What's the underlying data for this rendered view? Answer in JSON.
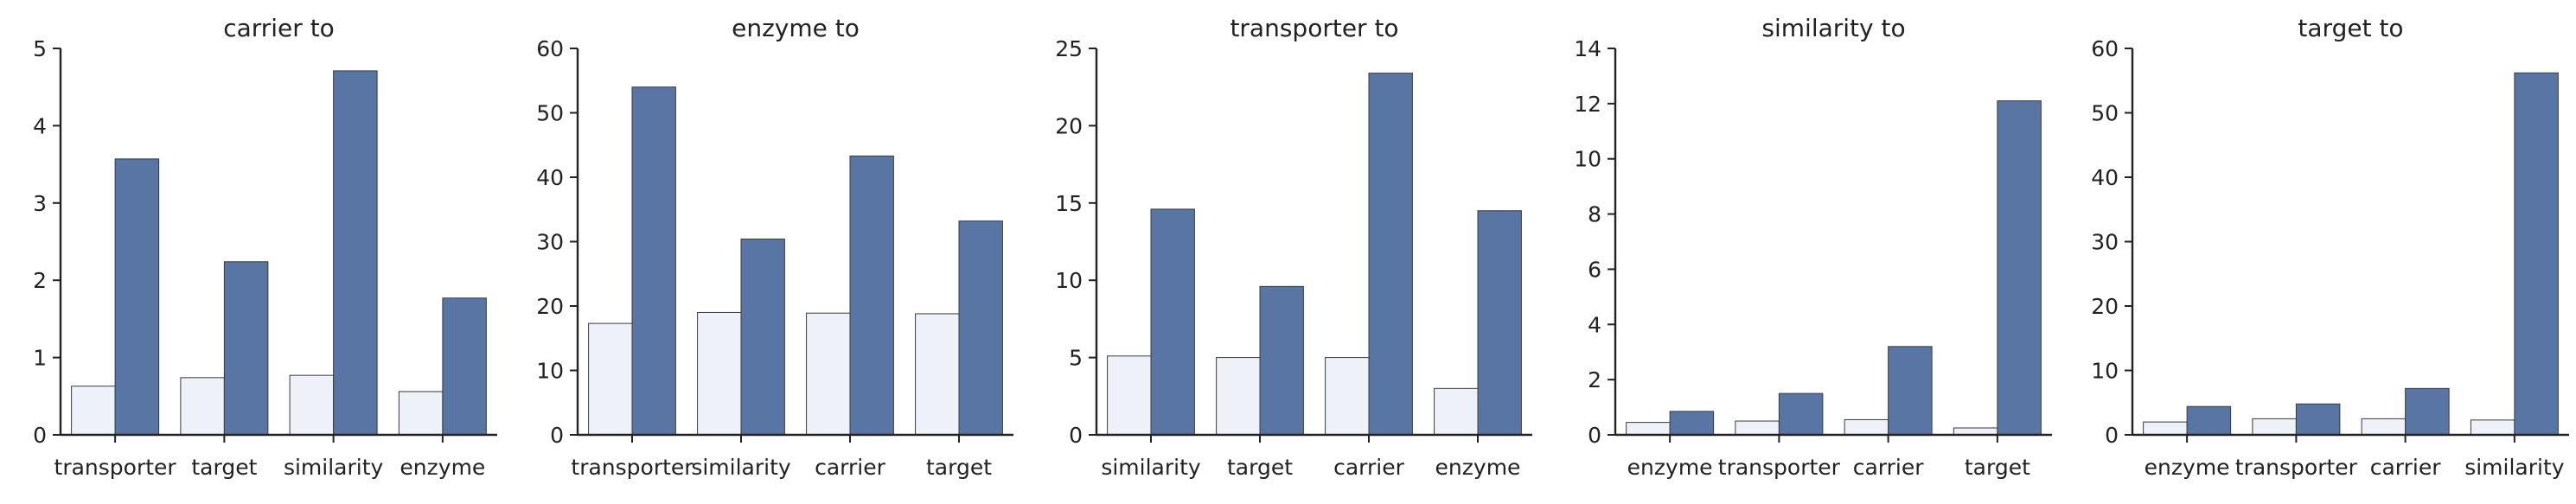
{
  "colors": {
    "light_bar": "#eef2f8",
    "dark_bar": "#5975a4"
  },
  "chart_data": [
    {
      "type": "bar",
      "title": "carrier to",
      "categories": [
        "transporter",
        "target",
        "similarity",
        "enzyme"
      ],
      "series": [
        {
          "values": [
            0.63,
            0.74,
            0.77,
            0.56
          ]
        },
        {
          "values": [
            3.57,
            2.24,
            4.71,
            1.77
          ]
        }
      ],
      "ylim": [
        0,
        5
      ],
      "yticks": [
        0,
        1,
        2,
        3,
        4,
        5
      ],
      "grid": false
    },
    {
      "type": "bar",
      "title": "enzyme to",
      "categories": [
        "transporter",
        "similarity",
        "carrier",
        "target"
      ],
      "series": [
        {
          "values": [
            17.3,
            19.0,
            18.9,
            18.8
          ]
        },
        {
          "values": [
            54.0,
            30.4,
            43.3,
            33.2
          ]
        }
      ],
      "ylim": [
        0,
        60
      ],
      "yticks": [
        0,
        10,
        20,
        30,
        40,
        50,
        60
      ],
      "grid": false
    },
    {
      "type": "bar",
      "title": "transporter to",
      "categories": [
        "similarity",
        "target",
        "carrier",
        "enzyme"
      ],
      "series": [
        {
          "values": [
            5.1,
            5.0,
            5.0,
            3.0
          ]
        },
        {
          "values": [
            14.6,
            9.6,
            23.4,
            14.5
          ]
        }
      ],
      "ylim": [
        0,
        25
      ],
      "yticks": [
        0,
        5,
        10,
        15,
        20,
        25
      ],
      "grid": false
    },
    {
      "type": "bar",
      "title": "similarity to",
      "categories": [
        "enzyme",
        "transporter",
        "carrier",
        "target"
      ],
      "series": [
        {
          "values": [
            0.45,
            0.5,
            0.55,
            0.25
          ]
        },
        {
          "values": [
            0.85,
            1.5,
            3.2,
            12.1
          ]
        }
      ],
      "ylim": [
        0,
        14
      ],
      "yticks": [
        0,
        2,
        4,
        6,
        8,
        10,
        12,
        14
      ],
      "grid": false
    },
    {
      "type": "bar",
      "title": "target to",
      "categories": [
        "enzyme",
        "transporter",
        "carrier",
        "similarity"
      ],
      "series": [
        {
          "values": [
            2.0,
            2.5,
            2.5,
            2.3
          ]
        },
        {
          "values": [
            4.4,
            4.8,
            7.2,
            56.2
          ]
        }
      ],
      "ylim": [
        0,
        60
      ],
      "yticks": [
        0,
        10,
        20,
        30,
        40,
        50,
        60
      ],
      "grid": false
    }
  ]
}
